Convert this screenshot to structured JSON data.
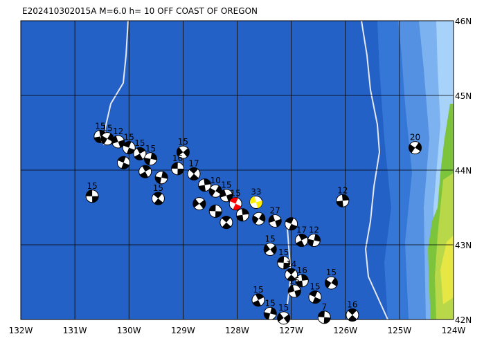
{
  "title": "E202410302015A M=6.0 h= 10 OFF COAST OF OREGON",
  "lonlim": [
    -132,
    -124
  ],
  "latlim": [
    42,
    46
  ],
  "lonticks": [
    {
      "value": -132,
      "label": "132W"
    },
    {
      "value": -131,
      "label": "131W"
    },
    {
      "value": -130,
      "label": "130W"
    },
    {
      "value": -129,
      "label": "129W"
    },
    {
      "value": -128,
      "label": "128W"
    },
    {
      "value": -127,
      "label": "127W"
    },
    {
      "value": -126,
      "label": "126W"
    },
    {
      "value": -125,
      "label": "125W"
    },
    {
      "value": -124,
      "label": "124W"
    }
  ],
  "latticks": [
    {
      "value": 46,
      "label": "46N"
    },
    {
      "value": 45,
      "label": "45N"
    },
    {
      "value": 44,
      "label": "44N"
    },
    {
      "value": 43,
      "label": "43N"
    },
    {
      "value": 42,
      "label": "42N"
    }
  ],
  "events": [
    {
      "lon": -130.68,
      "lat": 43.65,
      "label": "15"
    },
    {
      "lon": -129.46,
      "lat": 43.62,
      "label": "15"
    },
    {
      "lon": -130.53,
      "lat": 44.45,
      "label": "15"
    },
    {
      "lon": -130.4,
      "lat": 44.42,
      "label": "15"
    },
    {
      "lon": -130.2,
      "lat": 44.38,
      "label": "12"
    },
    {
      "lon": -130.0,
      "lat": 44.3,
      "label": "15"
    },
    {
      "lon": -129.8,
      "lat": 44.22,
      "label": "15"
    },
    {
      "lon": -129.6,
      "lat": 44.15,
      "label": "15"
    },
    {
      "lon": -129.0,
      "lat": 44.24,
      "label": "15"
    },
    {
      "lon": -129.1,
      "lat": 44.02,
      "label": "16"
    },
    {
      "lon": -128.8,
      "lat": 43.95,
      "label": "17"
    },
    {
      "lon": -128.6,
      "lat": 43.8
    },
    {
      "lon": -128.4,
      "lat": 43.72,
      "label": "10"
    },
    {
      "lon": -128.2,
      "lat": 43.66,
      "label": "15"
    },
    {
      "lon": -130.1,
      "lat": 44.1
    },
    {
      "lon": -129.7,
      "lat": 43.98
    },
    {
      "lon": -129.4,
      "lat": 43.9
    },
    {
      "lon": -128.7,
      "lat": 43.55
    },
    {
      "lon": -128.4,
      "lat": 43.45
    },
    {
      "lon": -128.2,
      "lat": 43.3
    },
    {
      "lon": -127.9,
      "lat": 43.4
    },
    {
      "lon": -127.6,
      "lat": 43.35
    },
    {
      "lon": -127.3,
      "lat": 43.32,
      "label": "27"
    },
    {
      "lon": -127.0,
      "lat": 43.28
    },
    {
      "lon": -126.81,
      "lat": 43.06,
      "label": "17"
    },
    {
      "lon": -126.58,
      "lat": 43.06,
      "label": "12"
    },
    {
      "lon": -127.39,
      "lat": 42.94,
      "label": "15"
    },
    {
      "lon": -127.14,
      "lat": 42.76,
      "label": "15"
    },
    {
      "lon": -127.0,
      "lat": 42.6,
      "label": "14"
    },
    {
      "lon": -126.8,
      "lat": 42.52,
      "label": "16"
    },
    {
      "lon": -126.26,
      "lat": 42.49,
      "label": "15"
    },
    {
      "lon": -126.94,
      "lat": 42.38,
      "label": "15"
    },
    {
      "lon": -126.56,
      "lat": 42.3,
      "label": "15"
    },
    {
      "lon": -127.61,
      "lat": 42.26,
      "label": "15"
    },
    {
      "lon": -127.39,
      "lat": 42.08,
      "label": "15"
    },
    {
      "lon": -127.14,
      "lat": 42.02,
      "label": "15"
    },
    {
      "lon": -126.39,
      "lat": 42.03,
      "label": "7"
    },
    {
      "lon": -125.87,
      "lat": 42.06,
      "label": "16"
    },
    {
      "lon": -126.05,
      "lat": 43.59,
      "label": "12"
    },
    {
      "lon": -124.71,
      "lat": 44.3,
      "label": "20"
    },
    {
      "lon": -127.65,
      "lat": 43.57,
      "label": "33",
      "color": "#ffee00"
    },
    {
      "lon": -128.03,
      "lat": 43.55,
      "label": "15",
      "color": "#ff0000"
    }
  ]
}
